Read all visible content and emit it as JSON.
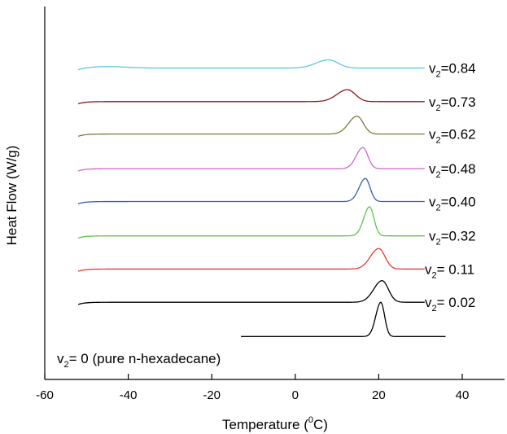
{
  "chart_data": {
    "type": "line",
    "xlabel_main": "Temperature (",
    "xlabel_sup": "0",
    "xlabel_end": "C)",
    "ylabel": "Heat Flow (W/g)",
    "xlim": [
      -60,
      50
    ],
    "xticks": [
      -60,
      -40,
      -20,
      0,
      20,
      40
    ],
    "grid": false,
    "series": [
      {
        "prefix": "v",
        "sub": "2",
        "suffix": "=0.84",
        "color": "#5BC8DC",
        "baseline": 0.835,
        "start": -52,
        "end": 31,
        "peak_x": 8.0,
        "peak_h": 0.022,
        "width": 3.0
      },
      {
        "prefix": "v",
        "sub": "2",
        "suffix": "=0.73",
        "color": "#8B1A1A",
        "baseline": 0.745,
        "start": -52,
        "end": 31,
        "peak_x": 12.5,
        "peak_h": 0.032,
        "width": 2.5
      },
      {
        "prefix": "v",
        "sub": "2",
        "suffix": "=0.62",
        "color": "#7F7A3A",
        "baseline": 0.658,
        "start": -52,
        "end": 31,
        "peak_x": 14.8,
        "peak_h": 0.048,
        "width": 2.0
      },
      {
        "prefix": "v",
        "sub": "2",
        "suffix": "=0.48",
        "color": "#CC66CC",
        "baseline": 0.565,
        "start": -52,
        "end": 31,
        "peak_x": 16.2,
        "peak_h": 0.057,
        "width": 1.6
      },
      {
        "prefix": "v",
        "sub": "2",
        "suffix": "=0.40",
        "color": "#3A5AB8",
        "baseline": 0.477,
        "start": -52,
        "end": 31,
        "peak_x": 16.8,
        "peak_h": 0.062,
        "width": 1.5
      },
      {
        "prefix": "v",
        "sub": "2",
        "suffix": "=0.32",
        "color": "#5CC24A",
        "baseline": 0.385,
        "start": -52,
        "end": 31,
        "peak_x": 17.8,
        "peak_h": 0.078,
        "width": 1.4
      },
      {
        "prefix": "v",
        "sub": "2",
        "suffix": "= 0.11",
        "color": "#E53A2A",
        "baseline": 0.296,
        "start": -52,
        "end": 31,
        "peak_x": 20.0,
        "peak_h": 0.055,
        "width": 2.0
      },
      {
        "prefix": "v",
        "sub": "2",
        "suffix": "= 0.02",
        "color": "#000000",
        "baseline": 0.207,
        "start": -52,
        "end": 31,
        "peak_x": 20.8,
        "peak_h": 0.058,
        "width": 2.0
      },
      {
        "prefix": "v",
        "sub": "2",
        "suffix": "= 0 (pure n-hexadecane)",
        "color": "#000000",
        "baseline": 0.115,
        "start": -13,
        "end": 36,
        "peak_x": 20.5,
        "peak_h": 0.092,
        "width": 1.2
      }
    ]
  }
}
